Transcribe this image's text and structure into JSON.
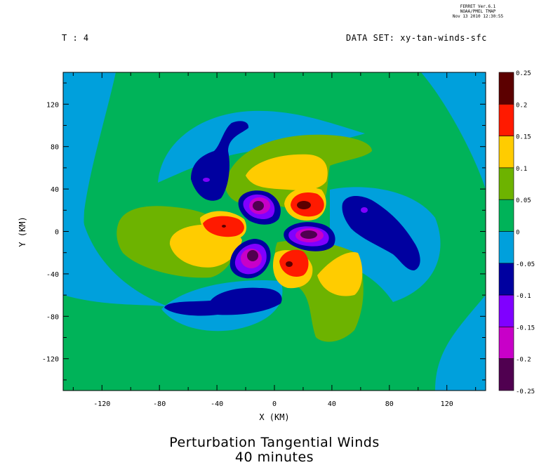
{
  "header": {
    "ferret": [
      "FERRET  Ver.6.1",
      "NOAA/PMEL TMAP",
      "Nov 13 2010 12:30:55"
    ],
    "time_label": "T : 4",
    "dataset_label": "DATA SET: xy-tan-winds-sfc"
  },
  "chart_data": {
    "type": "contour",
    "title": [
      "Perturbation Tangential Winds",
      "40 minutes"
    ],
    "xlabel": "X (KM)",
    "ylabel": "Y (KM)",
    "xlim": [
      -147,
      147
    ],
    "ylim": [
      -150,
      150
    ],
    "xticks": [
      -120,
      -80,
      -40,
      0,
      40,
      80,
      120
    ],
    "yticks": [
      120,
      80,
      40,
      0,
      -40,
      -80,
      -120
    ],
    "colorbar": {
      "levels": [
        0.25,
        0.2,
        0.15,
        0.1,
        0.05,
        0,
        -0.05,
        -0.1,
        -0.15,
        -0.2,
        -0.25
      ],
      "colors": [
        "#5c0000",
        "#ff1a00",
        "#ffcc00",
        "#6db300",
        "#00b359",
        "#00a0dc",
        "#0000a0",
        "#8000ff",
        "#c800c8",
        "#500050"
      ]
    },
    "features": [
      {
        "kind": "max",
        "x": -35,
        "y": 5,
        "value": 0.2
      },
      {
        "kind": "max",
        "x": 22,
        "y": 25,
        "value": 0.25
      },
      {
        "kind": "max",
        "x": 10,
        "y": -30,
        "value": 0.25
      },
      {
        "kind": "min",
        "x": -10,
        "y": 25,
        "value": -0.25
      },
      {
        "kind": "min",
        "x": 30,
        "y": -3,
        "value": -0.25
      },
      {
        "kind": "min",
        "x": -15,
        "y": -20,
        "value": -0.25
      },
      {
        "kind": "min",
        "x": -45,
        "y": 50,
        "value": -0.1
      },
      {
        "kind": "min",
        "x": 60,
        "y": 20,
        "value": -0.1
      },
      {
        "kind": "min",
        "x": -30,
        "y": -70,
        "value": -0.05
      }
    ]
  }
}
